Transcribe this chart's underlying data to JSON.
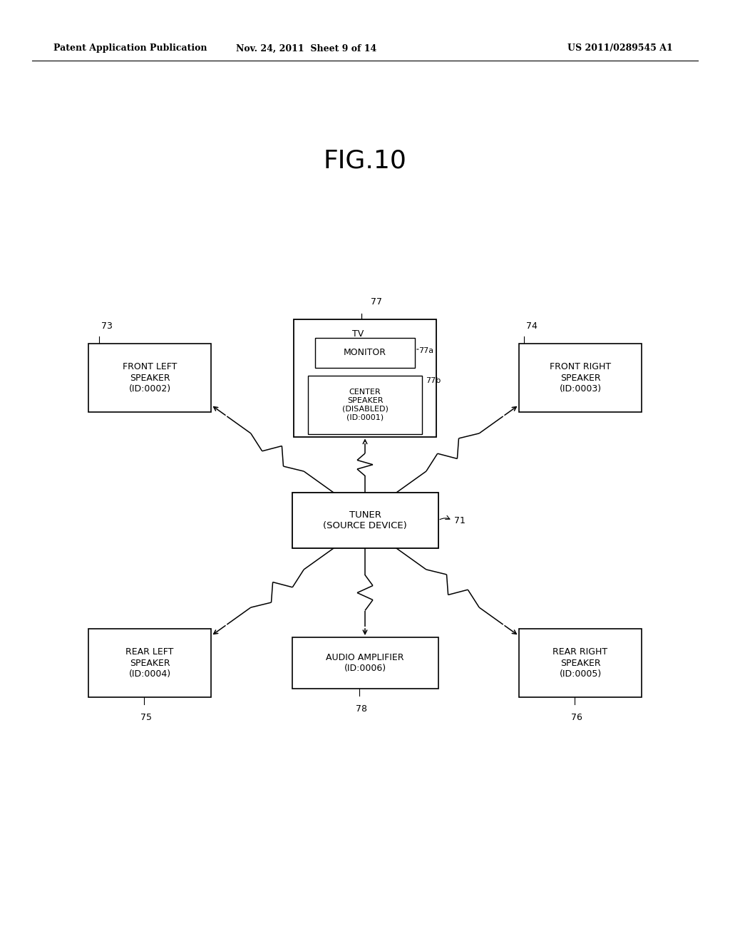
{
  "title": "FIG.10",
  "header_left": "Patent Application Publication",
  "header_mid": "Nov. 24, 2011  Sheet 9 of 14",
  "header_right": "US 2011/0289545 A1",
  "bg_color": "#ffffff",
  "text_color": "#000000",
  "fig_width": 10.24,
  "fig_height": 13.2,
  "dpi": 100
}
